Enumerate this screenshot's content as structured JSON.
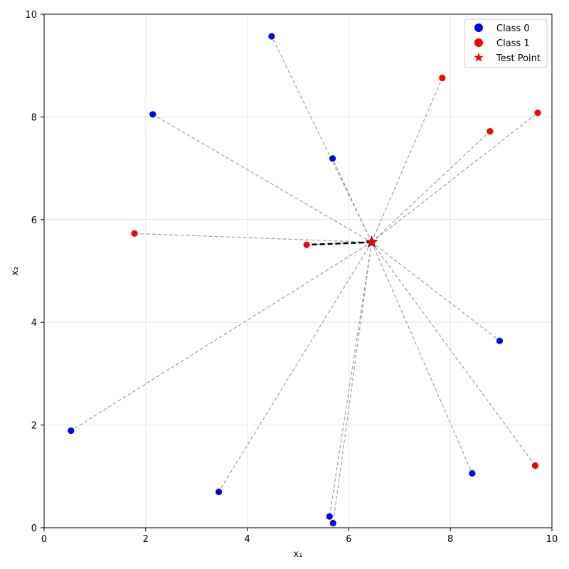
{
  "chart_data": {
    "type": "scatter",
    "title": "",
    "xlabel": "x₁",
    "ylabel": "x₂",
    "xlim": [
      0,
      10
    ],
    "ylim": [
      0,
      10
    ],
    "x_ticks": [
      "0",
      "2",
      "4",
      "6",
      "8",
      "10"
    ],
    "y_ticks": [
      "0",
      "2",
      "4",
      "6",
      "8",
      "10"
    ],
    "grid": true,
    "legend_position": "top-right",
    "colors": {
      "class0": "#0000ff",
      "class1": "#ff0000",
      "test": "#ff0000",
      "connector": "#a0a0a0",
      "nearest_connector": "#000000"
    },
    "test_point": {
      "name": "Test Point",
      "x": 6.45,
      "y": 5.56
    },
    "nearest_neighbor": {
      "x": 5.17,
      "y": 5.51
    },
    "series": [
      {
        "name": "Class 0",
        "points": [
          {
            "x": 4.48,
            "y": 9.57
          },
          {
            "x": 2.14,
            "y": 8.05
          },
          {
            "x": 5.68,
            "y": 7.19
          },
          {
            "x": 8.97,
            "y": 3.64
          },
          {
            "x": 0.53,
            "y": 1.89
          },
          {
            "x": 3.44,
            "y": 0.7
          },
          {
            "x": 8.43,
            "y": 1.06
          },
          {
            "x": 5.62,
            "y": 0.22
          },
          {
            "x": 5.69,
            "y": 0.09
          }
        ]
      },
      {
        "name": "Class 1",
        "points": [
          {
            "x": 7.84,
            "y": 8.76
          },
          {
            "x": 9.72,
            "y": 8.08
          },
          {
            "x": 8.78,
            "y": 7.72
          },
          {
            "x": 1.78,
            "y": 5.73
          },
          {
            "x": 5.17,
            "y": 5.51
          },
          {
            "x": 9.67,
            "y": 1.21
          }
        ]
      }
    ]
  }
}
